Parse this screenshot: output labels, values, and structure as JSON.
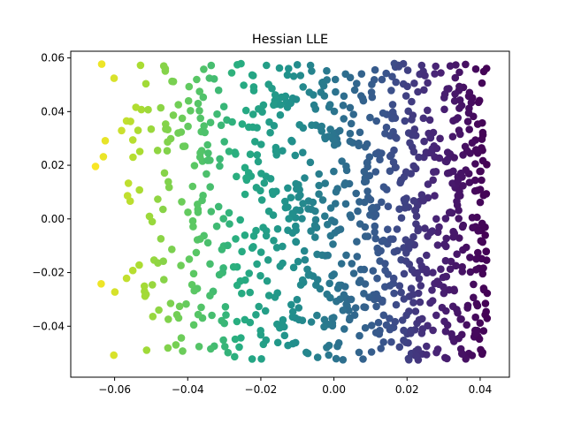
{
  "chart_data": {
    "type": "scatter",
    "title": "Hessian LLE",
    "xlabel": "",
    "ylabel": "",
    "xlim": [
      -0.072,
      0.048
    ],
    "ylim": [
      -0.059,
      0.0625
    ],
    "xticks": [
      -0.06,
      -0.04,
      -0.02,
      0.0,
      0.02,
      0.04
    ],
    "xtick_labels": [
      "−0.06",
      "−0.04",
      "−0.02",
      "0.00",
      "0.02",
      "0.04"
    ],
    "yticks": [
      -0.04,
      -0.02,
      0.0,
      0.02,
      0.04,
      0.06
    ],
    "ytick_labels": [
      "−0.04",
      "−0.02",
      "0.00",
      "0.02",
      "0.04",
      "0.06"
    ],
    "grid": false,
    "legend": "none",
    "colormap": "viridis (reversed along x: yellow at left, dark purple at right)",
    "colors": {
      "low": "#440154",
      "mid": "#21918c",
      "high": "#fde725"
    },
    "x_extent": [
      -0.066,
      0.042
    ],
    "y_extent": [
      -0.053,
      0.058
    ],
    "n_points": 1000,
    "density_note": "points denser toward the right (x > 0.02) than the left"
  }
}
